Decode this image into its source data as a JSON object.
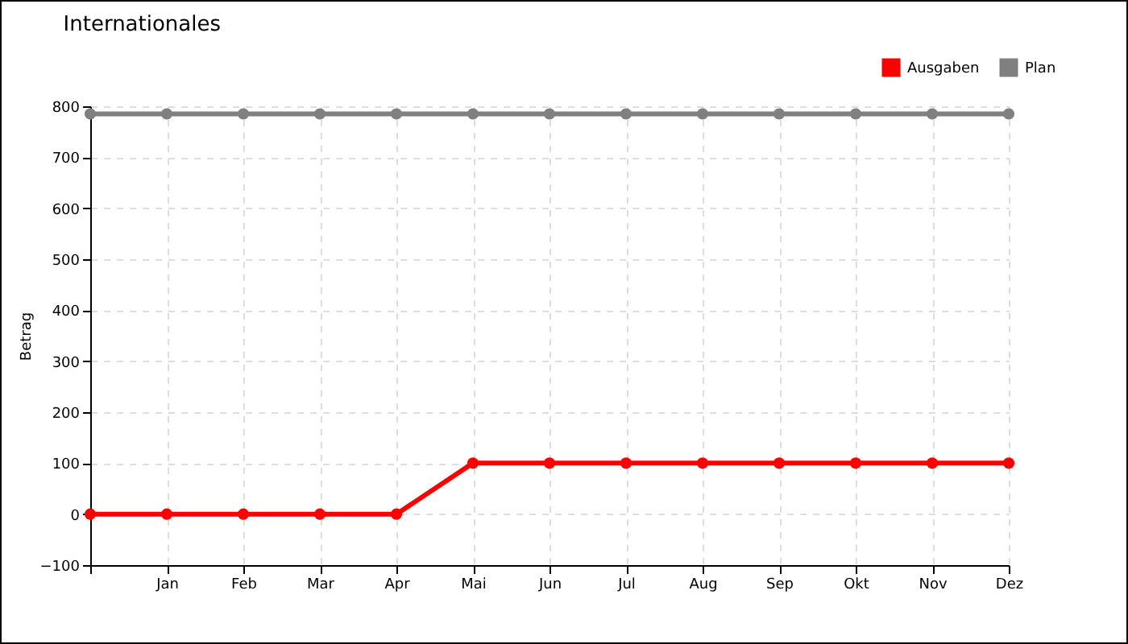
{
  "chart_data": {
    "type": "line",
    "title": "Internationales",
    "ylabel": "Betrag",
    "categories": [
      null,
      "Jan",
      "Feb",
      "Mar",
      "Apr",
      "Mai",
      "Jun",
      "Jul",
      "Aug",
      "Sep",
      "Okt",
      "Nov",
      "Dez"
    ],
    "series": [
      {
        "name": "Ausgaben",
        "color": "#ff0000",
        "values": [
          0,
          0,
          0,
          0,
          0,
          100,
          100,
          100,
          100,
          100,
          100,
          100,
          100
        ]
      },
      {
        "name": "Plan",
        "color": "#808080",
        "values": [
          785,
          785,
          785,
          785,
          785,
          785,
          785,
          785,
          785,
          785,
          785,
          785,
          785
        ]
      }
    ],
    "ylim": [
      -100,
      800
    ],
    "yticks": [
      -100,
      0,
      100,
      200,
      300,
      400,
      500,
      600,
      700,
      800
    ],
    "grid": true,
    "legend": "top right",
    "marker": "circle",
    "line_style": "solid"
  }
}
